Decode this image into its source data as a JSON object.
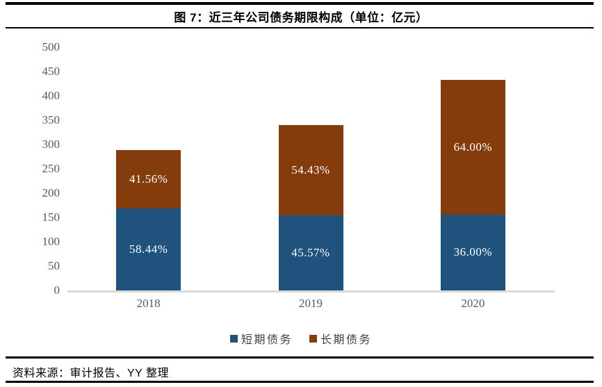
{
  "header": {
    "title": "图 7：近三年公司债务期限构成（单位：亿元）"
  },
  "footer": {
    "source": "资料来源：审计报告、YY 整理"
  },
  "colors": {
    "short_term_debt": "#1F527C",
    "long_term_debt": "#843C0C",
    "axis_line": "#D9D9D9",
    "axis_text": "#595959",
    "rule": "#000000",
    "bar_label_text": "#FFFFFF"
  },
  "chart_data": {
    "type": "bar",
    "stacked": true,
    "title": "近三年公司债务期限构成",
    "unit": "亿元",
    "xlabel": "",
    "ylabel": "",
    "categories": [
      "2018",
      "2019",
      "2020"
    ],
    "series": [
      {
        "key": "short-term-debt",
        "name": "短期债务",
        "color": "#1F527C",
        "values": [
          168,
          155,
          156
        ],
        "labels": [
          "58.44%",
          "45.57%",
          "36.00%"
        ]
      },
      {
        "key": "long-term-debt",
        "name": "长期债务",
        "color": "#843C0C",
        "values": [
          120,
          185,
          277
        ],
        "labels": [
          "41.56%",
          "54.43%",
          "64.00%"
        ]
      }
    ],
    "estimated_totals": [
      288,
      340,
      433
    ],
    "ylim": [
      0,
      500
    ],
    "ytick_step": 50,
    "grid": false,
    "legend_position": "bottom"
  }
}
